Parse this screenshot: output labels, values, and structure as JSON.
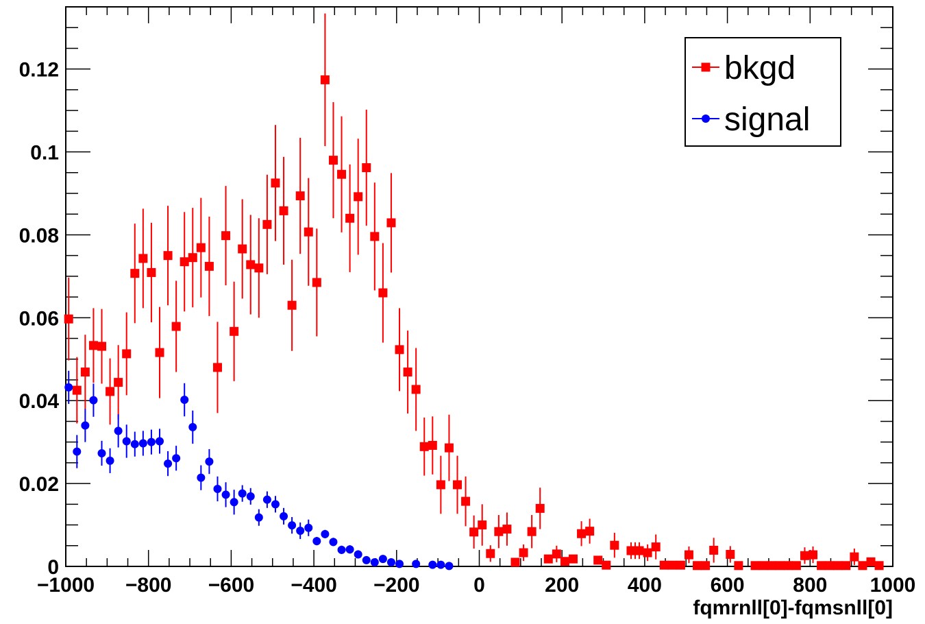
{
  "chart_data": {
    "type": "scatter",
    "title": "",
    "xlabel": "fqmrnll[0]-fqmsnll[0]",
    "ylabel": "",
    "xlim": [
      -1000,
      1000
    ],
    "ylim": [
      0,
      0.135
    ],
    "x_ticks": [
      -1000,
      -800,
      -600,
      -400,
      -200,
      0,
      200,
      400,
      600,
      800,
      1000
    ],
    "x_tick_labels": [
      "−1000",
      "−800",
      "−600",
      "−400",
      "−200",
      "0",
      "200",
      "400",
      "600",
      "800",
      "1000"
    ],
    "y_ticks": [
      0,
      0.02,
      0.04,
      0.06,
      0.08,
      0.1,
      0.12
    ],
    "y_tick_labels": [
      "0",
      "0.02",
      "0.04",
      "0.06",
      "0.08",
      "0.1",
      "0.12"
    ],
    "grid": false,
    "legend_position": "top-right",
    "series": [
      {
        "name": "bkgd",
        "color": "#ff0000",
        "marker": "square",
        "points": [
          [
            -993,
            0.0597,
            0.01
          ],
          [
            -973,
            0.0425,
            0.008
          ],
          [
            -953,
            0.0469,
            0.009
          ],
          [
            -933,
            0.0533,
            0.009
          ],
          [
            -913,
            0.0531,
            0.009
          ],
          [
            -893,
            0.0422,
            0.008
          ],
          [
            -873,
            0.0444,
            0.009
          ],
          [
            -853,
            0.0513,
            0.01
          ],
          [
            -833,
            0.0707,
            0.012
          ],
          [
            -813,
            0.0743,
            0.012
          ],
          [
            -793,
            0.0709,
            0.012
          ],
          [
            -773,
            0.0516,
            0.011
          ],
          [
            -753,
            0.075,
            0.012
          ],
          [
            -733,
            0.0579,
            0.011
          ],
          [
            -713,
            0.0735,
            0.012
          ],
          [
            -693,
            0.0745,
            0.012
          ],
          [
            -673,
            0.0769,
            0.012
          ],
          [
            -653,
            0.0724,
            0.012
          ],
          [
            -633,
            0.048,
            0.011
          ],
          [
            -613,
            0.0798,
            0.012
          ],
          [
            -593,
            0.0567,
            0.012
          ],
          [
            -573,
            0.0766,
            0.012
          ],
          [
            -553,
            0.0728,
            0.012
          ],
          [
            -533,
            0.072,
            0.012
          ],
          [
            -513,
            0.0825,
            0.012
          ],
          [
            -493,
            0.0925,
            0.014
          ],
          [
            -473,
            0.0858,
            0.013
          ],
          [
            -453,
            0.063,
            0.011
          ],
          [
            -433,
            0.0894,
            0.014
          ],
          [
            -413,
            0.0807,
            0.013
          ],
          [
            -393,
            0.0685,
            0.013
          ],
          [
            -373,
            0.1174,
            0.016
          ],
          [
            -353,
            0.098,
            0.014
          ],
          [
            -333,
            0.0946,
            0.014
          ],
          [
            -313,
            0.084,
            0.013
          ],
          [
            -293,
            0.0892,
            0.014
          ],
          [
            -273,
            0.0962,
            0.014
          ],
          [
            -253,
            0.0796,
            0.013
          ],
          [
            -233,
            0.066,
            0.012
          ],
          [
            -213,
            0.0829,
            0.012
          ],
          [
            -193,
            0.0523,
            0.01
          ],
          [
            -173,
            0.0469,
            0.01
          ],
          [
            -153,
            0.0427,
            0.01
          ],
          [
            -133,
            0.0289,
            0.007
          ],
          [
            -113,
            0.0292,
            0.007
          ],
          [
            -93,
            0.0197,
            0.007
          ],
          [
            -73,
            0.0286,
            0.008
          ],
          [
            -53,
            0.0197,
            0.007
          ],
          [
            -33,
            0.0157,
            0.006
          ],
          [
            -13,
            0.0083,
            0.004
          ],
          [
            7,
            0.01,
            0.005
          ],
          [
            27,
            0.0031,
            0.002
          ],
          [
            47,
            0.0084,
            0.004
          ],
          [
            67,
            0.009,
            0.004
          ],
          [
            87,
            0.001,
            0.001
          ],
          [
            107,
            0.0033,
            0.002
          ],
          [
            127,
            0.0084,
            0.004
          ],
          [
            147,
            0.014,
            0.005
          ],
          [
            167,
            0.0018,
            0.001
          ],
          [
            187,
            0.003,
            0.002
          ],
          [
            207,
            0.0012,
            0.001
          ],
          [
            227,
            0.0018,
            0.001
          ],
          [
            247,
            0.0079,
            0.003
          ],
          [
            267,
            0.0085,
            0.003
          ],
          [
            287,
            0.0015,
            0.001
          ],
          [
            307,
            0.0003,
            0.0005
          ],
          [
            327,
            0.0051,
            0.003
          ],
          [
            367,
            0.0038,
            0.002
          ],
          [
            377,
            0.0038,
            0.002
          ],
          [
            387,
            0.0038,
            0.002
          ],
          [
            407,
            0.0033,
            0.002
          ],
          [
            427,
            0.0047,
            0.003
          ],
          [
            447,
            0.0003,
            0.0003
          ],
          [
            467,
            0.0003,
            0.0003
          ],
          [
            487,
            0.0003,
            0.0003
          ],
          [
            507,
            0.0028,
            0.002
          ],
          [
            527,
            0.0002,
            0.0002
          ],
          [
            547,
            0.0002,
            0.0002
          ],
          [
            567,
            0.0039,
            0.003
          ],
          [
            607,
            0.0029,
            0.002
          ],
          [
            627,
            0.0002,
            0.0002
          ],
          [
            667,
            0.0002,
            0.0002
          ],
          [
            687,
            0.0002,
            0.0002
          ],
          [
            707,
            0.0002,
            0.0002
          ],
          [
            727,
            0.0002,
            0.0002
          ],
          [
            747,
            0.0002,
            0.0002
          ],
          [
            767,
            0.0002,
            0.0002
          ],
          [
            787,
            0.0026,
            0.002
          ],
          [
            807,
            0.0028,
            0.002
          ],
          [
            827,
            0.0002,
            0.0002
          ],
          [
            847,
            0.0002,
            0.0002
          ],
          [
            867,
            0.0002,
            0.0002
          ],
          [
            887,
            0.0002,
            0.0002
          ],
          [
            907,
            0.0023,
            0.002
          ],
          [
            927,
            0.0002,
            0.0002
          ],
          [
            947,
            0.0011,
            0.001
          ],
          [
            967,
            0.0002,
            0.0002
          ]
        ]
      },
      {
        "name": "signal",
        "color": "#0000ff",
        "marker": "circle",
        "points": [
          [
            -993,
            0.0432,
            0.004
          ],
          [
            -973,
            0.0277,
            0.004
          ],
          [
            -953,
            0.034,
            0.004
          ],
          [
            -933,
            0.0401,
            0.004
          ],
          [
            -913,
            0.0273,
            0.003
          ],
          [
            -893,
            0.0255,
            0.003
          ],
          [
            -873,
            0.0327,
            0.004
          ],
          [
            -853,
            0.0302,
            0.004
          ],
          [
            -833,
            0.0295,
            0.003
          ],
          [
            -813,
            0.0297,
            0.003
          ],
          [
            -793,
            0.03,
            0.003
          ],
          [
            -773,
            0.0302,
            0.003
          ],
          [
            -753,
            0.0248,
            0.003
          ],
          [
            -733,
            0.0261,
            0.003
          ],
          [
            -713,
            0.0402,
            0.004
          ],
          [
            -693,
            0.0336,
            0.004
          ],
          [
            -673,
            0.0214,
            0.003
          ],
          [
            -653,
            0.0253,
            0.003
          ],
          [
            -633,
            0.0187,
            0.003
          ],
          [
            -613,
            0.0173,
            0.003
          ],
          [
            -593,
            0.0155,
            0.003
          ],
          [
            -573,
            0.0176,
            0.002
          ],
          [
            -553,
            0.0169,
            0.002
          ],
          [
            -533,
            0.0118,
            0.002
          ],
          [
            -513,
            0.0161,
            0.002
          ],
          [
            -493,
            0.015,
            0.002
          ],
          [
            -473,
            0.0121,
            0.002
          ],
          [
            -453,
            0.0099,
            0.002
          ],
          [
            -433,
            0.0086,
            0.002
          ],
          [
            -413,
            0.0093,
            0.002
          ],
          [
            -393,
            0.0061,
            0.001
          ],
          [
            -373,
            0.0078,
            0.001
          ],
          [
            -353,
            0.0059,
            0.001
          ],
          [
            -333,
            0.004,
            0.001
          ],
          [
            -313,
            0.0041,
            0.001
          ],
          [
            -293,
            0.0029,
            0.001
          ],
          [
            -273,
            0.0015,
            0.0007
          ],
          [
            -253,
            0.001,
            0.0005
          ],
          [
            -233,
            0.0018,
            0.0007
          ],
          [
            -213,
            0.001,
            0.0005
          ],
          [
            -193,
            0.0006,
            0.0004
          ],
          [
            -153,
            0.0006,
            0.0004
          ],
          [
            -113,
            0.0004,
            0.0003
          ],
          [
            -93,
            0.0004,
            0.0003
          ],
          [
            -73,
            0.0001,
            0.0002
          ]
        ]
      }
    ]
  }
}
